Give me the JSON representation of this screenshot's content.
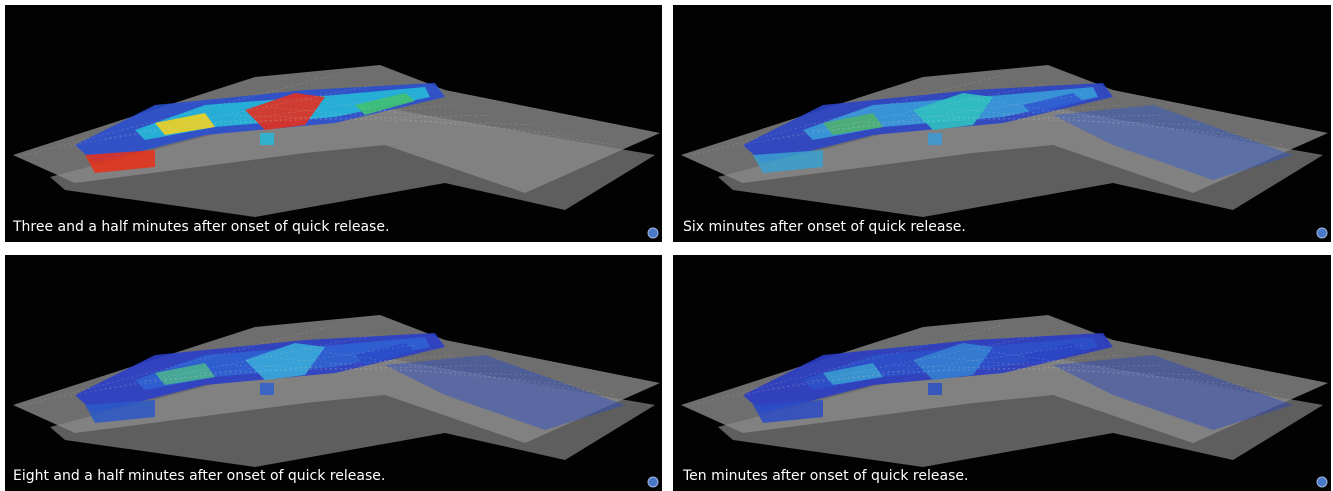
{
  "panels": [
    {
      "caption": "Three and a half minutes after onset of quick release."
    },
    {
      "caption": "Six minutes after onset of quick release."
    },
    {
      "caption": "Eight and a half minutes after onset of quick release."
    },
    {
      "caption": "Ten minutes after onset of quick release."
    }
  ]
}
